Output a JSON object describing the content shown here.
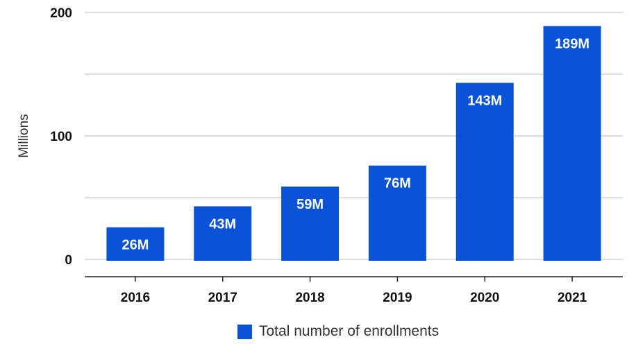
{
  "colors": {
    "bar": "#0a52d6",
    "grid": "#d0d0d0",
    "axis": "#222222"
  },
  "chart_data": {
    "type": "bar",
    "title": "",
    "xlabel": "",
    "ylabel": "Millions",
    "categories": [
      "2016",
      "2017",
      "2018",
      "2019",
      "2020",
      "2021"
    ],
    "series": [
      {
        "name": "Total number of enrollments",
        "values": [
          26,
          43,
          59,
          76,
          143,
          189
        ],
        "labels": [
          "26M",
          "43M",
          "59M",
          "76M",
          "143M",
          "189M"
        ]
      }
    ],
    "ylim": [
      0,
      200
    ],
    "yticks": [
      0,
      50,
      100,
      150,
      200
    ],
    "ytick_labels": [
      "0",
      "",
      "100",
      "",
      "200"
    ],
    "grid": true,
    "legend_position": "bottom-center"
  }
}
